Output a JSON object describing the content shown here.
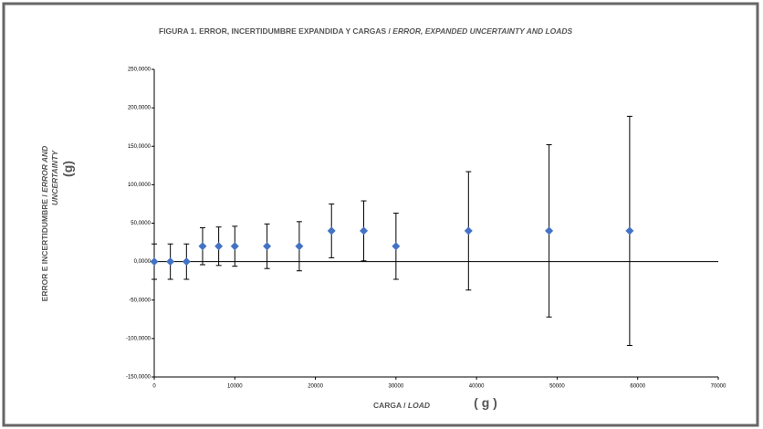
{
  "chart_data": {
    "type": "scatter",
    "title": "FIGURA 1.  ERROR, INCERTIDUMBRE EXPANDIDA Y CARGAS /",
    "title_italic": "ERROR, EXPANDED UNCERTAINTY AND LOADS",
    "y_label": [
      "ERROR E INCERTIDUMBRE /",
      "ERROR AND",
      "UNCERTAINTY"
    ],
    "y_unit": "(g)",
    "x_label": "CARGA /",
    "x_label_italic": "LOAD",
    "x_unit": "( g )",
    "x": [
      0,
      2000,
      4000,
      6000,
      8000,
      10000,
      14000,
      18000,
      22000,
      26000,
      30000,
      39000,
      49000,
      59000
    ],
    "values": [
      0,
      0,
      0,
      20,
      20,
      20,
      20,
      20,
      40,
      40,
      20,
      40,
      40,
      40
    ],
    "errors": [
      23,
      23,
      23,
      24,
      25,
      26,
      29,
      32,
      35,
      39,
      43,
      77,
      112,
      149
    ],
    "color": "#4472c4",
    "xlim": [
      0,
      70000
    ],
    "xticks": [
      0,
      10000,
      20000,
      30000,
      40000,
      50000,
      60000,
      70000
    ],
    "ylim": [
      -150,
      250
    ],
    "yticks": [
      {
        "value": -150,
        "label": "-150,0000"
      },
      {
        "value": -100,
        "label": "-100,0000"
      },
      {
        "value": -50,
        "label": "-50,0000"
      },
      {
        "value": 0,
        "label": "0,0000"
      },
      {
        "value": 50,
        "label": "50,0000"
      },
      {
        "value": 100,
        "label": "100,0000"
      },
      {
        "value": 150,
        "label": "150,0000"
      },
      {
        "value": 200,
        "label": "200,0000"
      },
      {
        "value": 250,
        "label": "250,0000"
      }
    ]
  }
}
